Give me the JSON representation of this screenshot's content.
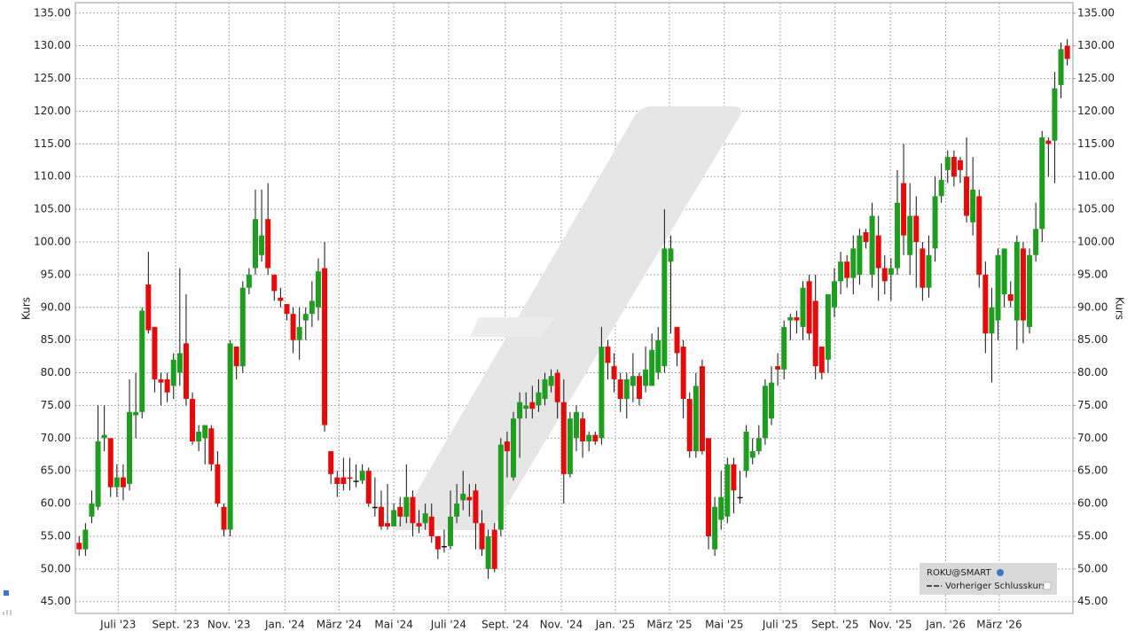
{
  "chart_data": {
    "type": "candlestick",
    "y_label": "Kurs",
    "y2_label": "Kurs",
    "series_name": "ROKU@SMART",
    "reference_line_name": "Vorheriger Schlusskurs",
    "legend": "bottom-right",
    "grid": true,
    "up_color": "#1e9e1e",
    "down_color": "#e60a0a",
    "wick_color": "#111111",
    "xlim": [
      -0.6,
      157.9
    ],
    "xticks": [
      {
        "value": 6.2,
        "label": "Juli '23"
      },
      {
        "value": 15.35,
        "label": "Sept. '23"
      },
      {
        "value": 23.8,
        "label": "Nov. '23"
      },
      {
        "value": 32.7,
        "label": "Jan. '24"
      },
      {
        "value": 41.3,
        "label": "März '24"
      },
      {
        "value": 50.0,
        "label": "Mai '24"
      },
      {
        "value": 58.7,
        "label": "Juli '24"
      },
      {
        "value": 67.7,
        "label": "Sept. '24"
      },
      {
        "value": 76.6,
        "label": "Nov. '24"
      },
      {
        "value": 85.2,
        "label": "Jan. '25"
      },
      {
        "value": 93.8,
        "label": "März '25"
      },
      {
        "value": 102.5,
        "label": "Mai '25"
      },
      {
        "value": 111.4,
        "label": "Juli '25"
      },
      {
        "value": 120.1,
        "label": "Sept. '25"
      },
      {
        "value": 128.9,
        "label": "Nov. '25"
      },
      {
        "value": 137.7,
        "label": "Jan. '26"
      },
      {
        "value": 146.2,
        "label": "März '26"
      }
    ],
    "ylim": [
      43.2,
      136.6
    ],
    "yticks": [
      {
        "value": 45,
        "label": "45.00"
      },
      {
        "value": 50,
        "label": "50.00"
      },
      {
        "value": 55,
        "label": "55.00"
      },
      {
        "value": 60,
        "label": "60.00"
      },
      {
        "value": 65,
        "label": "65.00"
      },
      {
        "value": 70,
        "label": "70.00"
      },
      {
        "value": 75,
        "label": "75.00"
      },
      {
        "value": 80,
        "label": "80.00"
      },
      {
        "value": 85,
        "label": "85.00"
      },
      {
        "value": 90,
        "label": "90.00"
      },
      {
        "value": 95,
        "label": "95.00"
      },
      {
        "value": 100,
        "label": "100.00"
      },
      {
        "value": 105,
        "label": "105.00"
      },
      {
        "value": 110,
        "label": "110.00"
      },
      {
        "value": 115,
        "label": "115.00"
      },
      {
        "value": 120,
        "label": "120.00"
      },
      {
        "value": 125,
        "label": "125.00"
      },
      {
        "value": 130,
        "label": "130.00"
      },
      {
        "value": 135,
        "label": "135.00"
      }
    ],
    "y2lim": [
      43.2,
      136.6
    ],
    "y2ticks": [
      {
        "value": 45,
        "label": "45.00"
      },
      {
        "value": 50,
        "label": "50.00"
      },
      {
        "value": 55,
        "label": "55.00"
      },
      {
        "value": 60,
        "label": "60.00"
      },
      {
        "value": 65,
        "label": "65.00"
      },
      {
        "value": 70,
        "label": "70.00"
      },
      {
        "value": 75,
        "label": "75.00"
      },
      {
        "value": 80,
        "label": "80.00"
      },
      {
        "value": 85,
        "label": "85.00"
      },
      {
        "value": 90,
        "label": "90.00"
      },
      {
        "value": 95,
        "label": "95.00"
      },
      {
        "value": 100,
        "label": "100.00"
      },
      {
        "value": 105,
        "label": "105.00"
      },
      {
        "value": 110,
        "label": "110.00"
      },
      {
        "value": 115,
        "label": "115.00"
      },
      {
        "value": 120,
        "label": "120.00"
      },
      {
        "value": 125,
        "label": "125.00"
      },
      {
        "value": 130,
        "label": "130.00"
      },
      {
        "value": 135,
        "label": "135.00"
      }
    ],
    "open": [
      54,
      53,
      58,
      59.5,
      70,
      70,
      62.5,
      64,
      63,
      73.5,
      74,
      93.5,
      87,
      79,
      79,
      78,
      80,
      84.5,
      76,
      69.5,
      70,
      71.5,
      66,
      59.5,
      56,
      84,
      81,
      93,
      96,
      98,
      103.5,
      95,
      91.5,
      90.5,
      89,
      85,
      88,
      89,
      90,
      96,
      68,
      64,
      64,
      64,
      63.5,
      63.5,
      65,
      59.5,
      59.5,
      57,
      56.5,
      59.5,
      58,
      61,
      57,
      57,
      58,
      55,
      53.5,
      53.5,
      58,
      60.5,
      61,
      62,
      57,
      50,
      56,
      56,
      69.5,
      64,
      73,
      74.5,
      75.5,
      75,
      76,
      78,
      80,
      75.5,
      64.5,
      70,
      73,
      69.5,
      70.5,
      70,
      84,
      81,
      79,
      76,
      78,
      79.5,
      78,
      78,
      80,
      81,
      97,
      87,
      84,
      76,
      68,
      81,
      70,
      53,
      57.5,
      58,
      66,
      61,
      65,
      67,
      68,
      70,
      73,
      81,
      80.5,
      88,
      88.5,
      87,
      94,
      91,
      84,
      82,
      90,
      94,
      97,
      94.5,
      95,
      101.5,
      95,
      101,
      96,
      95,
      96,
      109,
      98,
      104,
      99,
      93,
      99,
      107,
      111,
      113,
      112.5,
      110,
      103,
      107,
      95,
      86,
      88,
      92,
      92,
      88,
      99,
      87,
      98,
      102,
      115.5,
      115.5,
      124,
      130
    ],
    "high": [
      55,
      57,
      62,
      75,
      75,
      70,
      66,
      66,
      79,
      80,
      90,
      98.5,
      87,
      80,
      80,
      83,
      96,
      92,
      77,
      72,
      72,
      72,
      68,
      60,
      85,
      84,
      94,
      96,
      108,
      108,
      109,
      95,
      93,
      90.5,
      90,
      90,
      90,
      94,
      97.5,
      100,
      68,
      65,
      67,
      67,
      66,
      66,
      65.5,
      64,
      62,
      63,
      60,
      61,
      66,
      62,
      59,
      60,
      60,
      55,
      56,
      62,
      63,
      65,
      63,
      63,
      59,
      56,
      57,
      70,
      71,
      74,
      77,
      77,
      78,
      79,
      80,
      80.5,
      80.5,
      79,
      74,
      75,
      74,
      71,
      71,
      87,
      85,
      83,
      80,
      80,
      83,
      80,
      84,
      86,
      87,
      105,
      101,
      87,
      85,
      77,
      80,
      82,
      70,
      61,
      65,
      67,
      67,
      65,
      72,
      70,
      72,
      79,
      81,
      83,
      88,
      89,
      89.5,
      94,
      95,
      95,
      84,
      92,
      96,
      98.5,
      98,
      101,
      102,
      102,
      106,
      104,
      98,
      97.5,
      111,
      115,
      109,
      107,
      100,
      101,
      110,
      112,
      114,
      114,
      113,
      116,
      113,
      108,
      97,
      93,
      99,
      99,
      94,
      101,
      100,
      99,
      106,
      117,
      116,
      126,
      130.5,
      131
    ],
    "low": [
      52,
      52,
      57,
      59,
      68,
      61,
      61,
      60.5,
      62,
      70,
      73,
      86,
      77,
      75,
      75.5,
      76,
      78,
      75,
      69,
      68,
      66,
      65,
      59.5,
      55,
      55,
      79,
      80,
      92,
      95,
      97,
      95,
      91,
      90,
      88,
      83,
      82,
      85,
      87,
      88,
      71,
      63,
      61,
      62,
      62,
      62.5,
      63,
      59.5,
      58,
      56,
      56,
      57,
      56.5,
      57,
      55,
      55.5,
      56,
      54,
      51.5,
      52.5,
      53,
      57,
      59,
      58,
      53,
      52,
      48.5,
      49.5,
      55,
      64,
      63.5,
      67,
      73,
      73,
      74,
      75,
      77,
      73,
      60,
      64,
      68,
      67,
      68,
      69,
      69,
      79,
      77,
      74,
      73,
      75.5,
      75,
      77,
      78,
      79,
      80,
      86,
      81,
      73,
      67,
      67,
      67.5,
      53,
      52,
      56,
      57,
      58.5,
      60,
      64,
      66,
      67.5,
      69,
      72,
      78,
      79,
      85,
      86,
      85,
      85,
      79,
      79,
      80,
      88.5,
      92,
      93,
      92,
      93.5,
      99,
      93,
      91,
      92,
      91,
      95,
      98,
      95,
      93,
      91,
      91.5,
      97,
      106,
      109,
      108.5,
      109,
      103,
      101,
      93,
      83,
      78.5,
      85,
      90,
      90,
      83.5,
      84.5,
      86,
      97,
      100,
      110,
      109,
      122,
      127
    ],
    "close": [
      53,
      56,
      60,
      69.5,
      70.5,
      62.5,
      64,
      62.5,
      74,
      74,
      89.5,
      86.5,
      79,
      78.5,
      77,
      82,
      83,
      76,
      69.5,
      71,
      72,
      66,
      60,
      56,
      84.5,
      81,
      93,
      95,
      103.5,
      101,
      96,
      92.5,
      91,
      89,
      85,
      87,
      89,
      91,
      95.5,
      72,
      64.5,
      63,
      63,
      63.8,
      63.5,
      65,
      60,
      59.5,
      56.5,
      56.5,
      59,
      58,
      61,
      57,
      56.5,
      58.5,
      55,
      53,
      53.5,
      58,
      60,
      61.5,
      60.5,
      57,
      53,
      55,
      50,
      69,
      68,
      73,
      75.5,
      75,
      74.5,
      77,
      79,
      79.5,
      75.5,
      64.5,
      73,
      74,
      69.5,
      70.5,
      69.5,
      84,
      81.5,
      79,
      76,
      79,
      79.5,
      76,
      80.5,
      83.5,
      85,
      99,
      99,
      83,
      76,
      68,
      78,
      68,
      55,
      59.5,
      61,
      66,
      62,
      61,
      71,
      68,
      70,
      78,
      78.5,
      80.5,
      87,
      88.5,
      88,
      93,
      86,
      81,
      80,
      92,
      94,
      97,
      94.5,
      99,
      101,
      100,
      104,
      96,
      94,
      96,
      106,
      101,
      104,
      100,
      93,
      98,
      107,
      109.5,
      113,
      110,
      111,
      104,
      108,
      95,
      86,
      90,
      98,
      99,
      91,
      100,
      88,
      98,
      102,
      116,
      115,
      123.5,
      129.5,
      128
    ]
  }
}
